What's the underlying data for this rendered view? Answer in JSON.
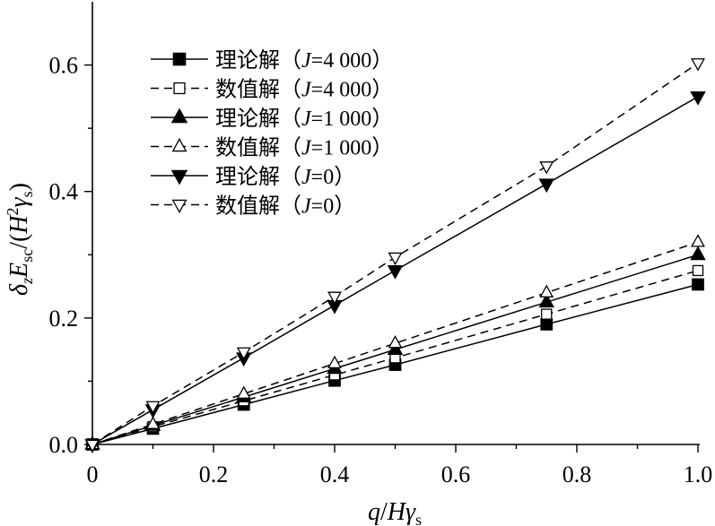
{
  "chart_data": {
    "type": "line",
    "title": "",
    "xlabel": "q/Hγs",
    "ylabel": "δzEsc/(H²γs)",
    "xlim": [
      0,
      1.0
    ],
    "ylim": [
      0,
      0.7
    ],
    "x_ticks": [
      {
        "value": 0,
        "label": "0"
      },
      {
        "value": 0.2,
        "label": "0.2"
      },
      {
        "value": 0.4,
        "label": "0.4"
      },
      {
        "value": 0.6,
        "label": "0.6"
      },
      {
        "value": 0.8,
        "label": "0.8"
      },
      {
        "value": 1.0,
        "label": "1.0"
      }
    ],
    "y_ticks": [
      {
        "value": 0,
        "label": "0.0"
      },
      {
        "value": 0.2,
        "label": "0.2"
      },
      {
        "value": 0.4,
        "label": "0.4"
      },
      {
        "value": 0.6,
        "label": "0.6"
      }
    ],
    "x": [
      0,
      0.1,
      0.25,
      0.4,
      0.5,
      0.75,
      1.0
    ],
    "legend_position": "top-left",
    "series": [
      {
        "name": "理论解（J=4 000）",
        "label_prefix": "理论解（",
        "label_j": "J",
        "label_suffix": "=4 000）",
        "marker": "square",
        "filled": true,
        "dashed": false,
        "values": [
          0,
          0.025,
          0.063,
          0.101,
          0.126,
          0.19,
          0.253
        ]
      },
      {
        "name": "数值解（J=4 000）",
        "label_prefix": "数值解（",
        "label_j": "J",
        "label_suffix": "=4 000）",
        "marker": "square",
        "filled": false,
        "dashed": true,
        "values": [
          0,
          0.028,
          0.069,
          0.11,
          0.137,
          0.206,
          0.275
        ]
      },
      {
        "name": "理论解（J=1 000）",
        "label_prefix": "理论解（",
        "label_j": "J",
        "label_suffix": "=1 000）",
        "marker": "triangle-up",
        "filled": true,
        "dashed": false,
        "values": [
          0,
          0.03,
          0.075,
          0.12,
          0.15,
          0.225,
          0.3
        ]
      },
      {
        "name": "数值解（J=1 000）",
        "label_prefix": "数值解（",
        "label_j": "J",
        "label_suffix": "=1 000）",
        "marker": "triangle-up",
        "filled": false,
        "dashed": true,
        "values": [
          0,
          0.032,
          0.08,
          0.128,
          0.16,
          0.24,
          0.32
        ]
      },
      {
        "name": "理论解（J=0）",
        "label_prefix": "理论解（",
        "label_j": "J",
        "label_suffix": "=0）",
        "marker": "triangle-down",
        "filled": true,
        "dashed": false,
        "values": [
          0,
          0.055,
          0.137,
          0.22,
          0.275,
          0.412,
          0.55
        ]
      },
      {
        "name": "数值解（J=0）",
        "label_prefix": "数值解（",
        "label_j": "J",
        "label_suffix": "=0）",
        "marker": "triangle-down",
        "filled": false,
        "dashed": true,
        "values": [
          0,
          0.061,
          0.146,
          0.234,
          0.296,
          0.44,
          0.603
        ]
      }
    ]
  }
}
